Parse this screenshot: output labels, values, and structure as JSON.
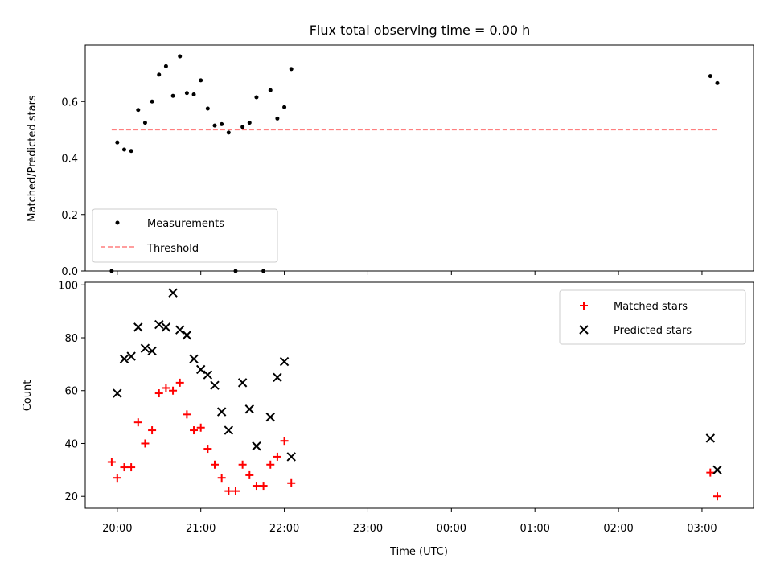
{
  "chart_data": [
    {
      "type": "scatter",
      "title": "Flux total observing time = 0.00 h",
      "xlabel": "",
      "ylabel": "Matched/Predicted stars",
      "xlim": [
        "19:37",
        "03:37"
      ],
      "ylim": [
        0,
        0.8
      ],
      "yticks": [
        "0.0",
        "0.2",
        "0.4",
        "0.6"
      ],
      "legend": "lower-left",
      "grid": false,
      "series": [
        {
          "name": "Measurements",
          "color": "#000000",
          "marker": "dot",
          "points": [
            [
              "19:56",
              0.0
            ],
            [
              "20:00",
              0.455
            ],
            [
              "20:05",
              0.43
            ],
            [
              "20:10",
              0.425
            ],
            [
              "20:15",
              0.57
            ],
            [
              "20:20",
              0.525
            ],
            [
              "20:25",
              0.6
            ],
            [
              "20:30",
              0.695
            ],
            [
              "20:35",
              0.725
            ],
            [
              "20:40",
              0.62
            ],
            [
              "20:45",
              0.76
            ],
            [
              "20:50",
              0.63
            ],
            [
              "20:55",
              0.625
            ],
            [
              "21:00",
              0.675
            ],
            [
              "21:05",
              0.575
            ],
            [
              "21:10",
              0.515
            ],
            [
              "21:15",
              0.52
            ],
            [
              "21:20",
              0.49
            ],
            [
              "21:25",
              0.0
            ],
            [
              "21:30",
              0.51
            ],
            [
              "21:35",
              0.525
            ],
            [
              "21:40",
              0.615
            ],
            [
              "21:45",
              0.0
            ],
            [
              "21:50",
              0.64
            ],
            [
              "21:55",
              0.54
            ],
            [
              "22:00",
              0.58
            ],
            [
              "22:05",
              0.715
            ],
            [
              "03:06",
              0.69
            ],
            [
              "03:11",
              0.665
            ]
          ]
        },
        {
          "name": "Threshold",
          "color": "#ff7f7f",
          "style": "dashed",
          "points": [
            [
              "19:56",
              0.5
            ],
            [
              "03:11",
              0.5
            ]
          ]
        }
      ]
    },
    {
      "type": "scatter",
      "title": "",
      "xlabel": "Time (UTC)",
      "ylabel": "Count",
      "xlim": [
        "19:37",
        "03:37"
      ],
      "ylim": [
        15.5,
        101
      ],
      "xticks": [
        "20:00",
        "21:00",
        "22:00",
        "23:00",
        "00:00",
        "01:00",
        "02:00",
        "03:00"
      ],
      "yticks": [
        "20",
        "40",
        "60",
        "80",
        "100"
      ],
      "legend": "top-right",
      "grid": false,
      "series": [
        {
          "name": "Matched stars",
          "color": "#ff0000",
          "marker": "plus",
          "points": [
            [
              "19:56",
              33
            ],
            [
              "20:00",
              27
            ],
            [
              "20:05",
              31
            ],
            [
              "20:10",
              31
            ],
            [
              "20:15",
              48
            ],
            [
              "20:20",
              40
            ],
            [
              "20:25",
              45
            ],
            [
              "20:30",
              59
            ],
            [
              "20:35",
              61
            ],
            [
              "20:40",
              60
            ],
            [
              "20:45",
              63
            ],
            [
              "20:50",
              51
            ],
            [
              "20:55",
              45
            ],
            [
              "21:00",
              46
            ],
            [
              "21:05",
              38
            ],
            [
              "21:10",
              32
            ],
            [
              "21:15",
              27
            ],
            [
              "21:20",
              22
            ],
            [
              "21:25",
              22
            ],
            [
              "21:30",
              32
            ],
            [
              "21:35",
              28
            ],
            [
              "21:40",
              24
            ],
            [
              "21:45",
              24
            ],
            [
              "21:50",
              32
            ],
            [
              "21:55",
              35
            ],
            [
              "22:00",
              41
            ],
            [
              "22:05",
              25
            ],
            [
              "03:06",
              29
            ],
            [
              "03:11",
              20
            ]
          ]
        },
        {
          "name": "Predicted stars",
          "color": "#000000",
          "marker": "x",
          "points": [
            [
              "20:00",
              59
            ],
            [
              "20:05",
              72
            ],
            [
              "20:10",
              73
            ],
            [
              "20:15",
              84
            ],
            [
              "20:20",
              76
            ],
            [
              "20:25",
              75
            ],
            [
              "20:30",
              85
            ],
            [
              "20:35",
              84
            ],
            [
              "20:40",
              97
            ],
            [
              "20:45",
              83
            ],
            [
              "20:50",
              81
            ],
            [
              "20:55",
              72
            ],
            [
              "21:00",
              68
            ],
            [
              "21:05",
              66
            ],
            [
              "21:10",
              62
            ],
            [
              "21:15",
              52
            ],
            [
              "21:20",
              45
            ],
            [
              "21:30",
              63
            ],
            [
              "21:35",
              53
            ],
            [
              "21:40",
              39
            ],
            [
              "21:50",
              50
            ],
            [
              "21:55",
              65
            ],
            [
              "22:00",
              71
            ],
            [
              "22:05",
              35
            ],
            [
              "03:06",
              42
            ],
            [
              "03:11",
              30
            ]
          ]
        }
      ]
    }
  ]
}
